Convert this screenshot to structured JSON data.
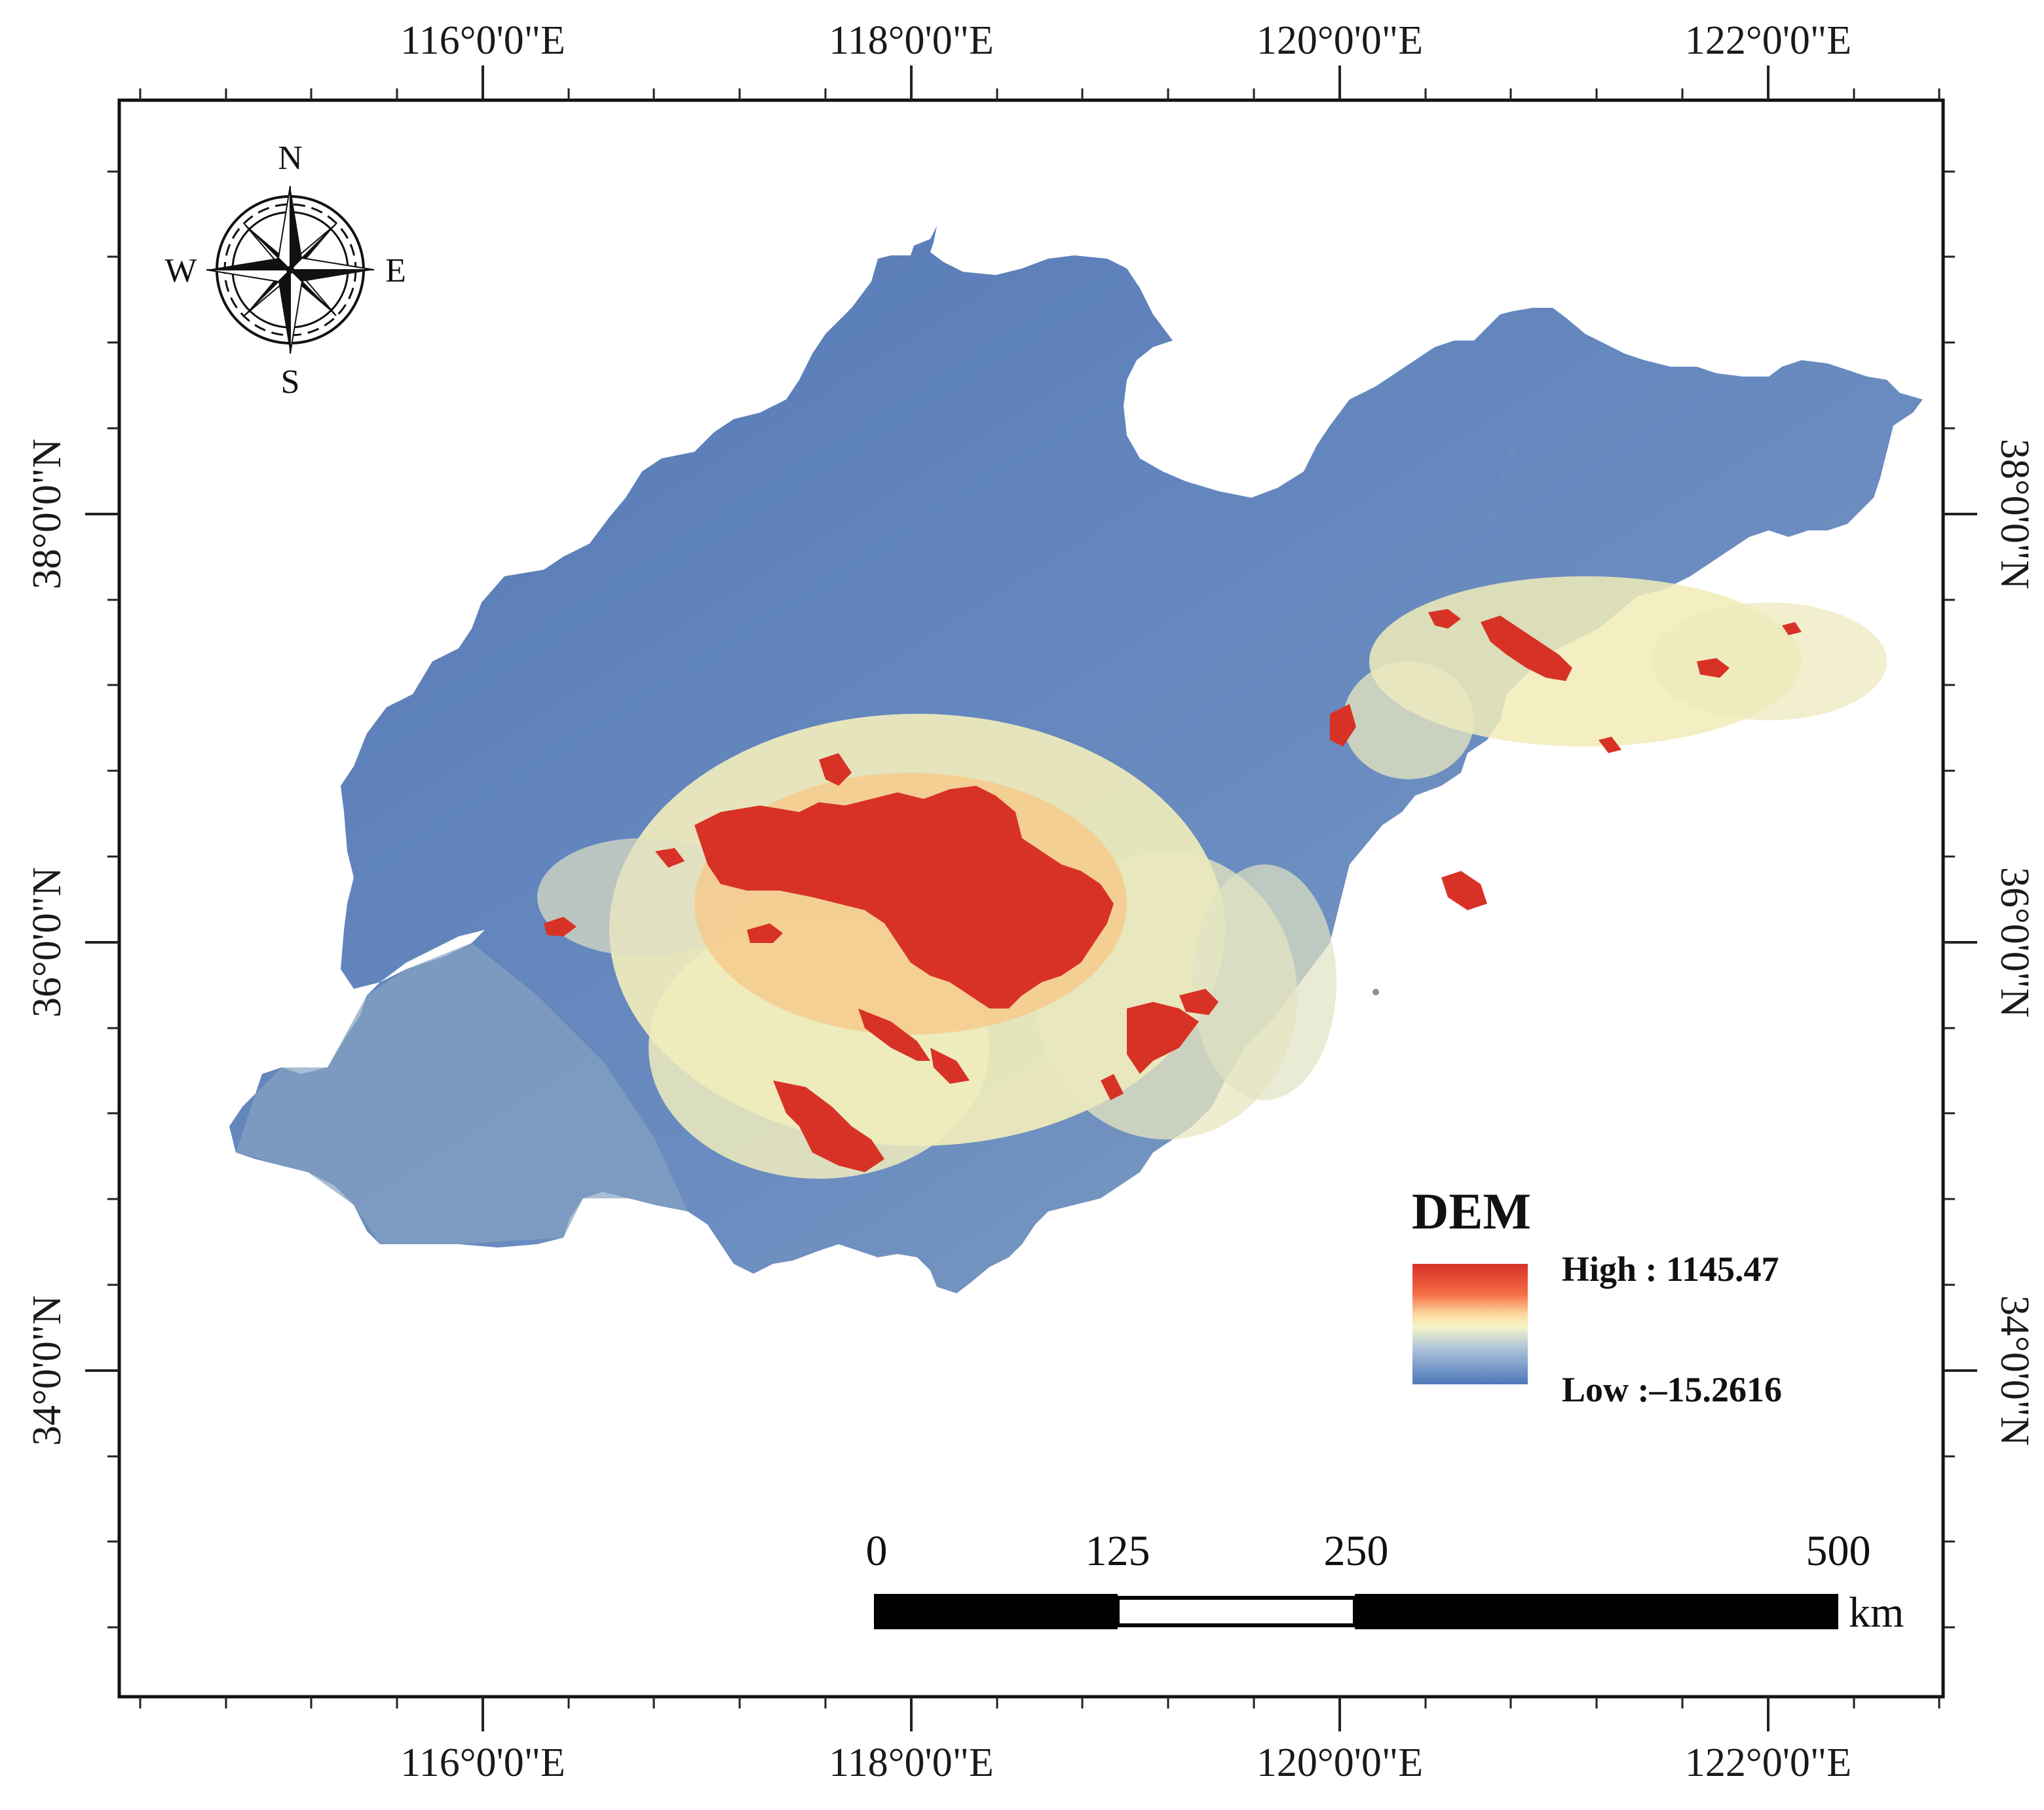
{
  "map": {
    "top_axis_labels": [
      "116°0'0\"E",
      "118°0'0\"E",
      "120°0'0\"E",
      "122°0'0\"E"
    ],
    "bottom_axis_labels": [
      "116°0'0\"E",
      "118°0'0\"E",
      "120°0'0\"E",
      "122°0'0\"E"
    ],
    "left_axis_labels": [
      "38°0'0\"N",
      "36°0'0\"N",
      "34°0'0\"N"
    ],
    "right_axis_labels": [
      "38°0'0\"N",
      "36°0'0\"N",
      "34°0'0\"N"
    ]
  },
  "compass": {
    "north": "N",
    "south": "S",
    "east": "E",
    "west": "W"
  },
  "legend": {
    "title": "DEM",
    "high_label": "High : 1145.47",
    "low_label": "Low :–15.2616",
    "colors": [
      "#d73027",
      "#f46d43",
      "#fdae61",
      "#fee090",
      "#f7f4c8",
      "#abc3d8",
      "#6f97c6",
      "#4f78b8"
    ]
  },
  "scale_bar": {
    "ticks": [
      "0",
      "125",
      "250",
      "500"
    ],
    "unit": "km"
  },
  "colors": {
    "lowland": "#5b82bd",
    "plain": "#7d9dc0",
    "mid": "#f5f0b8",
    "high": "#d83226"
  }
}
